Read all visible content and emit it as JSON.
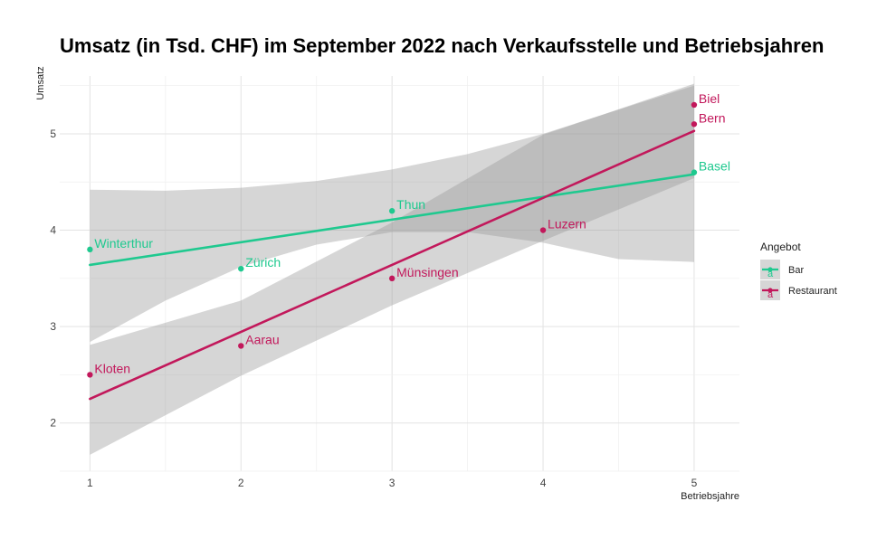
{
  "chart_data": {
    "type": "scatter",
    "title": "Umsatz (in Tsd. CHF) im September 2022 nach Verkaufsstelle und Betriebsjahren",
    "xlabel": "Betriebsjahre",
    "ylabel": "Umsatz",
    "xlim": [
      0.8,
      5.3
    ],
    "ylim": [
      1.5,
      5.6
    ],
    "xticks": [
      1,
      2,
      3,
      4,
      5
    ],
    "yticks": [
      2,
      3,
      4,
      5
    ],
    "grid": true,
    "legend": {
      "title": "Angebot",
      "position": "right",
      "items": [
        {
          "name": "Bar",
          "glyph": "a"
        },
        {
          "name": "Restaurant",
          "glyph": "a"
        }
      ]
    },
    "series": [
      {
        "name": "Bar",
        "color": "#1fc98f",
        "points": [
          {
            "x": 1,
            "y": 3.8,
            "label": "Winterthur"
          },
          {
            "x": 2,
            "y": 3.6,
            "label": "Zürich"
          },
          {
            "x": 3,
            "y": 4.2,
            "label": "Thun"
          },
          {
            "x": 5,
            "y": 4.6,
            "label": "Basel"
          }
        ],
        "fit": {
          "x": [
            1,
            5
          ],
          "y": [
            3.64,
            4.58
          ]
        },
        "band": {
          "x": [
            1,
            1.5,
            2,
            2.5,
            3,
            3.5,
            4,
            4.5,
            5
          ],
          "lower": [
            2.84,
            3.27,
            3.62,
            3.85,
            3.98,
            3.98,
            3.87,
            3.7,
            3.67
          ],
          "upper": [
            4.42,
            4.41,
            4.44,
            4.51,
            4.63,
            4.79,
            5.0,
            5.25,
            5.5
          ]
        }
      },
      {
        "name": "Restaurant",
        "color": "#c2185b",
        "points": [
          {
            "x": 1,
            "y": 2.5,
            "label": "Kloten"
          },
          {
            "x": 2,
            "y": 2.8,
            "label": "Aarau"
          },
          {
            "x": 3,
            "y": 3.5,
            "label": "Münsingen"
          },
          {
            "x": 4,
            "y": 4.0,
            "label": "Luzern"
          },
          {
            "x": 5,
            "y": 5.3,
            "label": "Biel"
          },
          {
            "x": 5,
            "y": 5.1,
            "label": "Bern"
          }
        ],
        "fit": {
          "x": [
            1,
            5
          ],
          "y": [
            2.25,
            5.03
          ]
        },
        "band": {
          "x": [
            1,
            2,
            3,
            4,
            5
          ],
          "lower": [
            1.67,
            2.49,
            3.22,
            3.89,
            4.54
          ],
          "upper": [
            2.81,
            3.27,
            4.08,
            4.99,
            5.52
          ]
        }
      }
    ]
  }
}
